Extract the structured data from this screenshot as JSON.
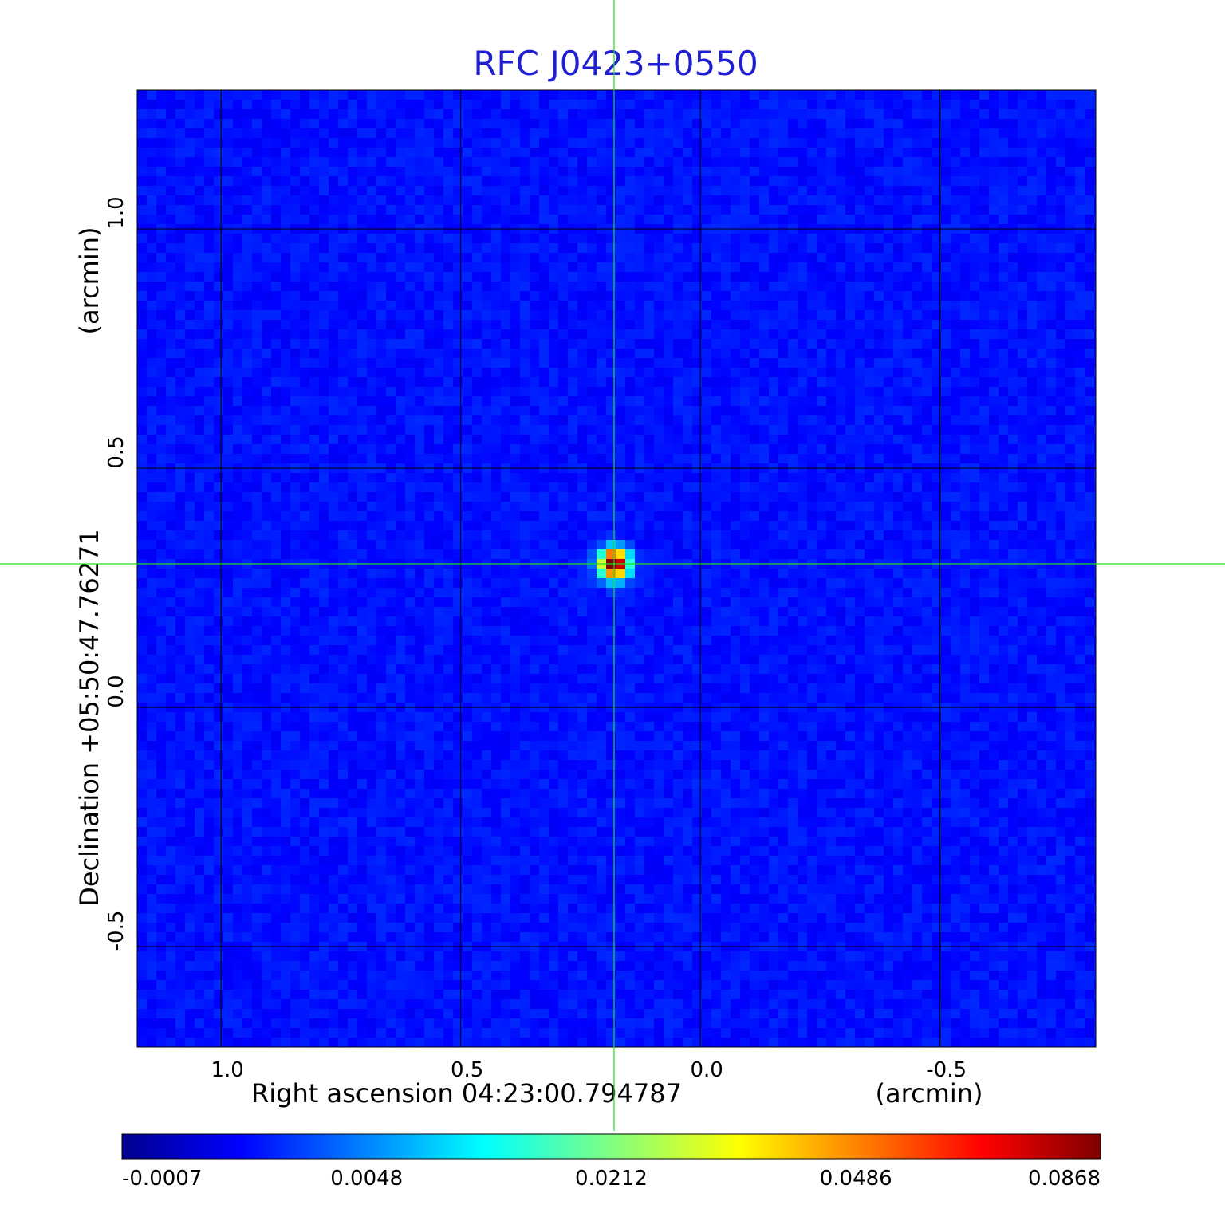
{
  "chart_data": {
    "type": "heatmap",
    "title": "RFC J0423+0550",
    "xlabel": "Right ascension  04:23:00.794787",
    "xunit": "(arcmin)",
    "ylabel": "Declination  +05:50:47.76271",
    "yunit": "(arcmin)",
    "xlim": [
      1.175,
      -0.825
    ],
    "ylim": [
      -0.71,
      1.29
    ],
    "x_reversed": true,
    "x_ticks": [
      {
        "value": 1.0,
        "label": "1.0"
      },
      {
        "value": 0.5,
        "label": "0.5"
      },
      {
        "value": 0.0,
        "label": "0.0"
      },
      {
        "value": -0.5,
        "label": "-0.5"
      }
    ],
    "y_ticks": [
      {
        "value": 1.0,
        "label": "1.0"
      },
      {
        "value": 0.5,
        "label": "0.5"
      },
      {
        "value": 0.0,
        "label": "0.0"
      },
      {
        "value": -0.5,
        "label": "-0.5"
      }
    ],
    "grid": true,
    "colormap": "jet",
    "colorbar": {
      "min": -0.0007,
      "max": 0.0868,
      "nonlinear": true,
      "ticks": [
        {
          "value": -0.0007,
          "label": "-0.0007",
          "position": 0.0
        },
        {
          "value": 0.0048,
          "label": "0.0048",
          "position": 0.25
        },
        {
          "value": 0.0212,
          "label": "0.0212",
          "position": 0.5
        },
        {
          "value": 0.0486,
          "label": "0.0486",
          "position": 0.75
        },
        {
          "value": 0.0868,
          "label": "0.0868",
          "position": 1.0
        }
      ]
    },
    "background_level": -0.0002,
    "source": {
      "ra_offset": 0.18,
      "dec_offset": 0.3,
      "peak": 0.0868
    },
    "crosshair": {
      "ra_offset": 0.18,
      "dec_offset": 0.3,
      "color": "#22dd22"
    }
  },
  "colors": {
    "title": "#1f1fd0",
    "text": "#000000",
    "grid": "#000000"
  }
}
